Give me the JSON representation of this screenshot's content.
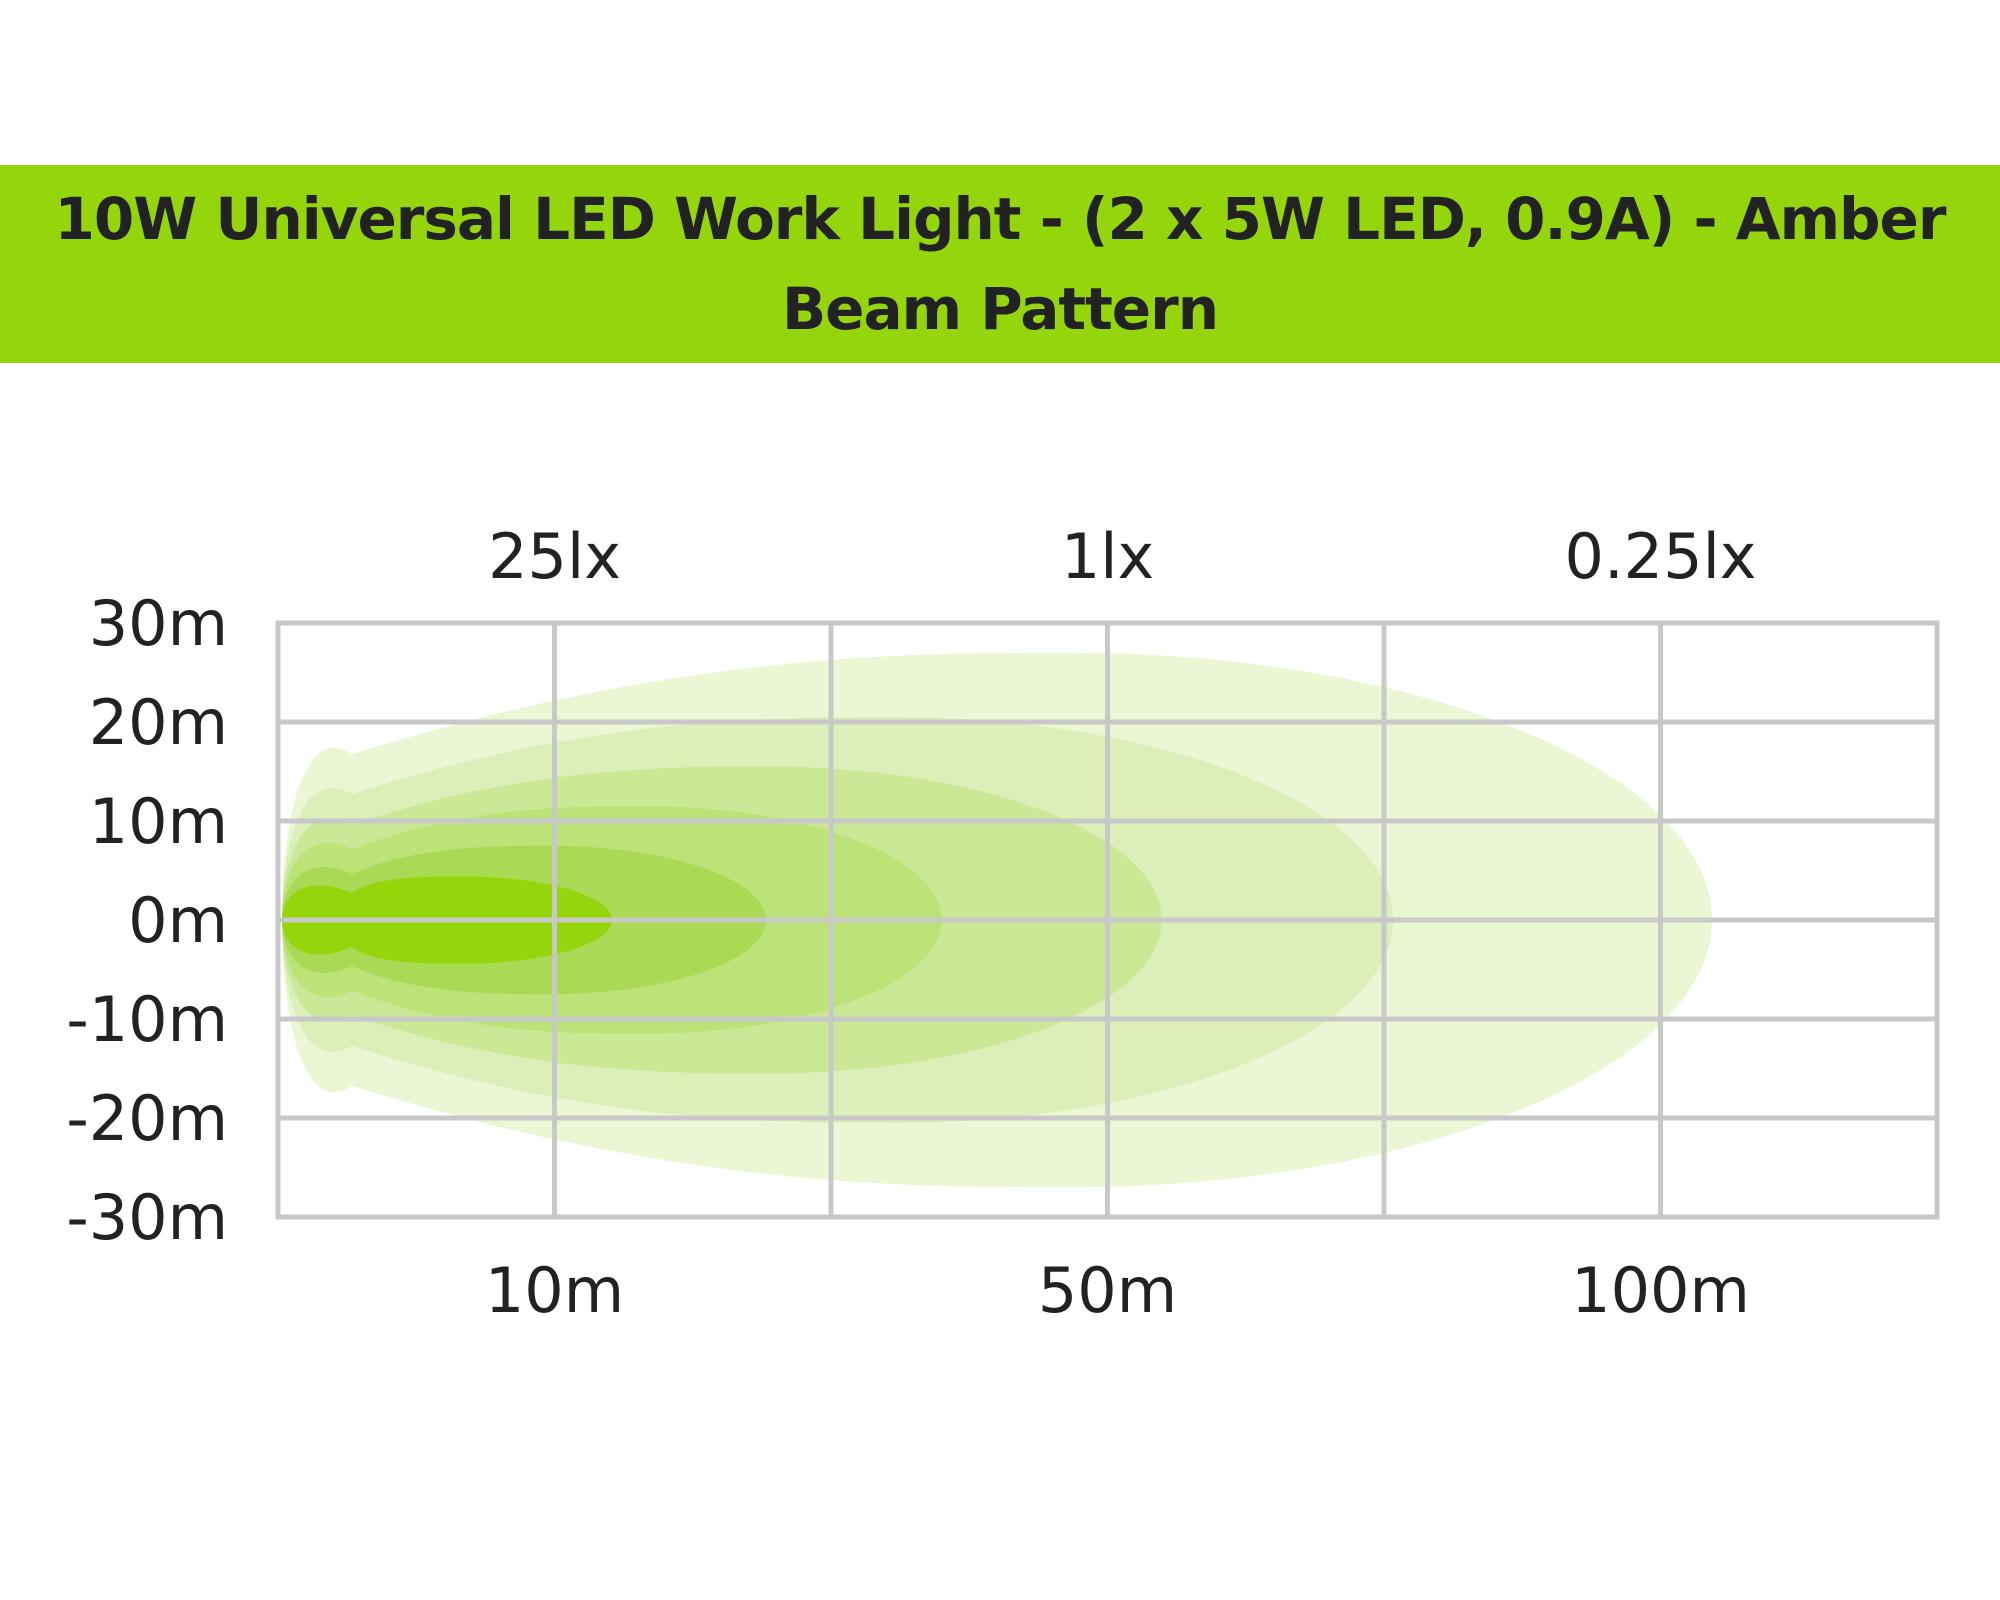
{
  "header": {
    "title_line1": "10W Universal LED Work Light - (2 x 5W LED, 0.9A) - Amber",
    "title_line2": "Beam Pattern"
  },
  "colors": {
    "header_band": "#95d50c",
    "grid": "#c8c8c8",
    "text": "#222222"
  },
  "chart_data": {
    "type": "area",
    "title": "10W Universal LED Work Light - (2 x 5W LED, 0.9A) - Amber Beam Pattern",
    "xlabel": "",
    "ylabel": "",
    "x_ticks_bottom": [
      "10m",
      "50m",
      "100m"
    ],
    "x_ticks_top": [
      "25lx",
      "1lx",
      "0.25lx"
    ],
    "y_ticks": [
      "30m",
      "20m",
      "10m",
      "0m",
      "-10m",
      "-20m",
      "-30m"
    ],
    "y_tick_values": [
      30,
      20,
      10,
      0,
      -10,
      -20,
      -30
    ],
    "ylim": [
      -30,
      30
    ],
    "grid": true,
    "beam_zones": [
      {
        "reach_m": 130,
        "half_width_m": 27,
        "color": "#ebf6d5"
      },
      {
        "reach_m": 101,
        "half_width_m": 20.5,
        "color": "#dcefb8"
      },
      {
        "reach_m": 80,
        "half_width_m": 15.5,
        "color": "#cbe897"
      },
      {
        "reach_m": 60,
        "half_width_m": 11.5,
        "color": "#bce378"
      },
      {
        "reach_m": 44,
        "half_width_m": 7.5,
        "color": "#aad956"
      },
      {
        "reach_m": 30,
        "half_width_m": 4.4,
        "color": "#95d50c"
      }
    ]
  }
}
